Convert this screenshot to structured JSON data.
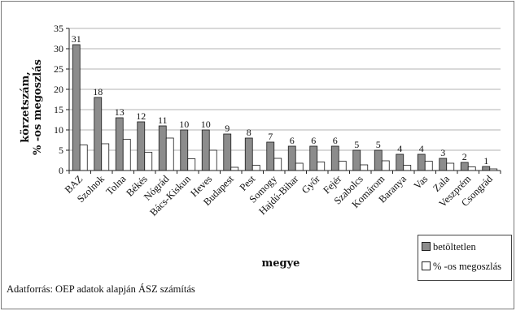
{
  "chart_data": {
    "type": "bar",
    "ylabel_line1": "körzetszám,",
    "ylabel_line2": "% -os megoszlás",
    "xlabel": "megye",
    "ylim": [
      0,
      35
    ],
    "yticks": [
      0,
      5,
      10,
      15,
      20,
      25,
      30,
      35
    ],
    "grid": true,
    "legend_position": "bottom-right",
    "categories": [
      "BAZ",
      "Szolnok",
      "Tolna",
      "Békés",
      "Nógrád",
      "Bács-Kiskun",
      "Heves",
      "Budapest",
      "Pest",
      "Somogy",
      "Hajdú-Bihar",
      "Győr",
      "Fejér",
      "Szabolcs",
      "Komárom",
      "Baranya",
      "Vas",
      "Zala",
      "Veszprém",
      "Csongrád"
    ],
    "series": [
      {
        "name": "betöltetlen",
        "color": "#8c8c8c",
        "values": [
          31,
          18,
          13,
          12,
          11,
          10,
          10,
          9,
          8,
          7,
          6,
          6,
          6,
          5,
          5,
          4,
          4,
          3,
          2,
          1
        ],
        "data_labels": [
          "31",
          "18",
          "13",
          "12",
          "11",
          "10",
          "10",
          "9",
          "8",
          "7",
          "6",
          "6",
          "6",
          "5",
          "5",
          "4",
          "4",
          "3",
          "2",
          "1"
        ]
      },
      {
        "name": "% -os megoszlás",
        "color": "#ffffff",
        "values": [
          6.3,
          6.6,
          7.7,
          4.5,
          8.0,
          2.9,
          5.0,
          0.8,
          1.3,
          3.0,
          1.8,
          2.1,
          2.3,
          1.4,
          2.4,
          1.3,
          2.3,
          1.8,
          0.9,
          0.4
        ]
      }
    ]
  },
  "source_note": "Adatforrás: OEP adatok alapján ÁSZ számítás"
}
